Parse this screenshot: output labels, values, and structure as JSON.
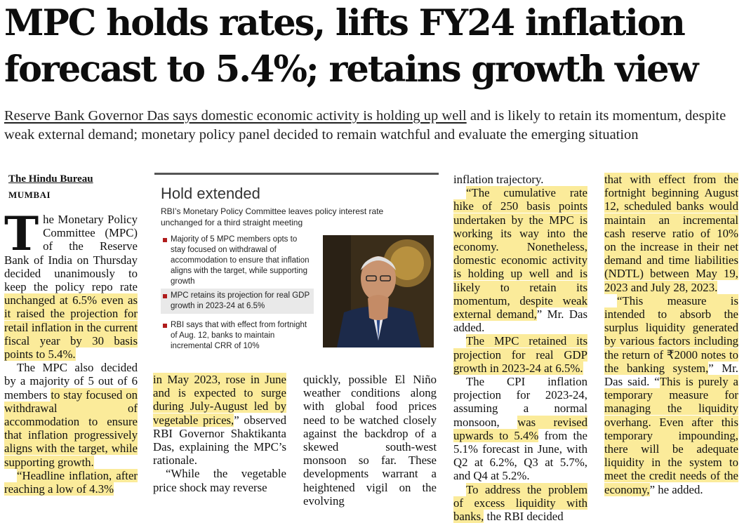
{
  "article": {
    "headline_line1": "MPC holds rates, lifts FY24 inflation",
    "headline_line2": "forecast to 5.4%; retains growth view",
    "subhead_underlined": "Reserve Bank Governor Das says domestic economic activity is holding up well",
    "subhead_rest": " and is likely to retain its momentum, despite weak external demand; monetary policy panel decided to remain watchful and evaluate the emerging situation",
    "byline": "The Hindu Bureau",
    "dateline": "MUMBAI"
  },
  "infobox": {
    "title": "Hold extended",
    "intro": "RBI’s Monetary Policy Committee leaves policy interest rate unchanged for a third straight meeting",
    "bullets": [
      "Majority of 5 MPC members opts to stay focused on withdrawal of accommodation to ensure that inflation aligns with the target, while supporting growth",
      "MPC retains its projection for real GDP growth in 2023-24 at 6.5%",
      "RBI says that with effect from fortnight of Aug. 12, banks to maintain incremental CRR of 10%"
    ]
  },
  "columns": {
    "c1_dropcap": "T",
    "c1_p1a": "he Monetary Policy Committee (MPC) of the Reserve Bank of India on Thursday decided unanimously to keep the policy repo rate ",
    "c1_p1b": "unchanged at 6.5% even as it raised the projection for retail inflation in the current fiscal year by 30 basis points to 5.4%.",
    "c1_p2a": "The MPC also decided by a majority of 5 out of 6 members ",
    "c1_p2b": "to stay focused on withdrawal of accommodation to ensure that inflation progressively aligns with the target, while supporting growth.",
    "c1_p3a": "“Headline inflation, after reaching a low of 4.3%",
    "c2_p1a": "in May 2023, rose in June and is expected to surge during July-August led by vegetable prices,",
    "c2_p1b": "” observed RBI Governor Shaktikanta Das, explaining the MPC’s rationale.",
    "c2_p2": "“While the vegetable price shock may reverse",
    "c3_p1": "quickly, possible El Niño weather conditions along with global food prices need to be watched closely against the backdrop of a skewed south-west monsoon so far. These developments warrant a heightened vigil on the evolving",
    "c4_p1": "inflation trajectory.",
    "c4_p2a": "“The cumulative rate hike of 250 basis points undertaken by the MPC is working its way into the economy. Nonetheless, domestic economic activity is holding up well and is likely to retain its momentum, despite weak external demand,",
    "c4_p2b": "” Mr. Das added.",
    "c4_p3": "The MPC retained its projection for real GDP growth in 2023-24 at 6.5%.",
    "c4_p4a": "The CPI inflation projection for 2023-24, assuming a normal monsoon, ",
    "c4_p4b": "was revised upwards to 5.4%",
    "c4_p4c": " from the 5.1% forecast in June, with Q2 at 6.2%, Q3 at 5.7%, and Q4 at 5.2%.",
    "c4_p5a": "To address the problem of excess liquidity with banks,",
    "c4_p5b": " the RBI decided",
    "c5_p1": "that with effect from the fortnight beginning August 12, scheduled banks would maintain an incremental cash reserve ratio of 10% on the increase in their net demand and time liabilities (NDTL) between May 19, 2023 and July 28, 2023.",
    "c5_p2a": "“This measure is intended to absorb the surplus liquidity generated by various factors including the return of ₹2000 notes to the banking system,",
    "c5_p2b": "” Mr. Das said. “",
    "c5_p2c": "This is purely a temporary measure for managing the liquidity overhang. Even after this temporary impounding, there will be adequate liquidity in the system to meet the credit needs of the economy,",
    "c5_p2d": "” he added."
  },
  "colors": {
    "highlight": "#fbeb9a",
    "bullet_marker": "#b01c1c"
  }
}
